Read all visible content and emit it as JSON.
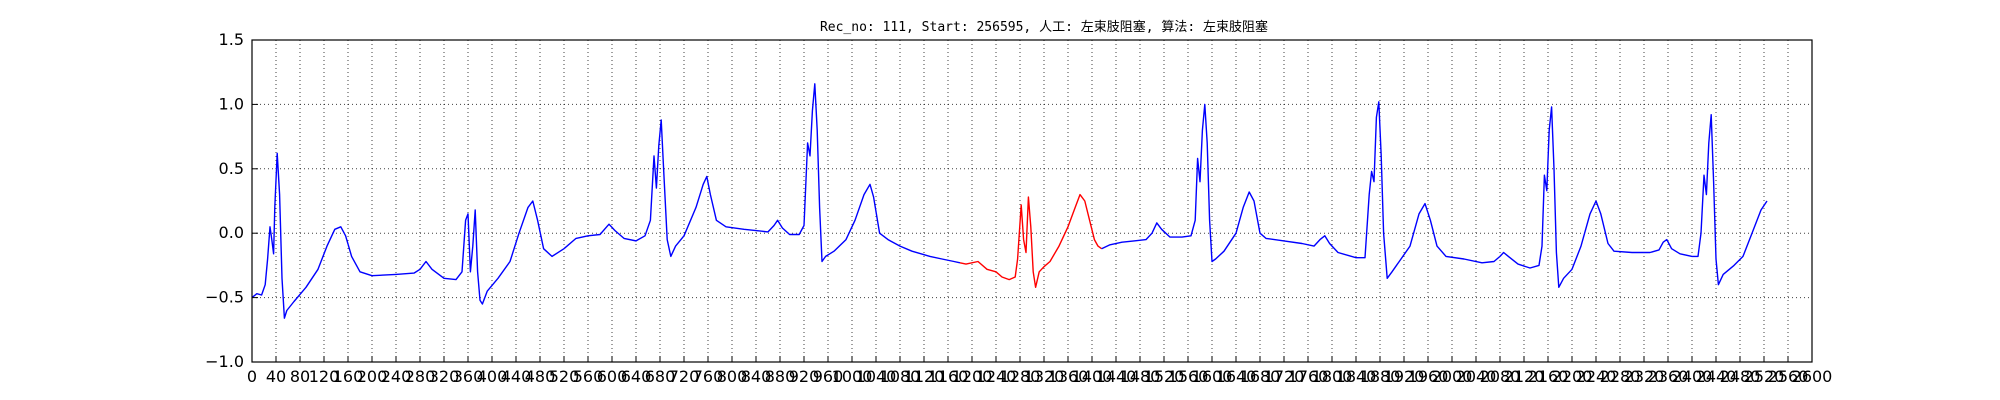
{
  "chart_data": {
    "type": "line",
    "title": "Rec_no: 111, Start: 256595, 人工: 左束肢阻塞, 算法: 左束肢阻塞",
    "xlabel": "",
    "ylabel": "",
    "xlim": [
      0,
      2600
    ],
    "ylim": [
      -1.0,
      1.5
    ],
    "grid": true,
    "x_ticks": [
      0,
      40,
      80,
      120,
      160,
      200,
      240,
      280,
      320,
      360,
      400,
      440,
      480,
      520,
      560,
      600,
      640,
      680,
      720,
      760,
      800,
      840,
      880,
      920,
      960,
      1000,
      1040,
      1080,
      1120,
      1160,
      1200,
      1240,
      1280,
      1320,
      1360,
      1400,
      1440,
      1480,
      1520,
      1560,
      1600,
      1640,
      1680,
      1720,
      1760,
      1800,
      1840,
      1880,
      1920,
      1960,
      2000,
      2040,
      2080,
      2120,
      2160,
      2200,
      2240,
      2280,
      2320,
      2360,
      2400,
      2440,
      2480,
      2520,
      2560,
      2600
    ],
    "x_tick_labels": [
      "0",
      "40",
      "80",
      "120",
      "160",
      "200",
      "240",
      "280",
      "320",
      "360",
      "400",
      "440",
      "480",
      "520",
      "560",
      "600",
      "640",
      "680",
      "720",
      "760",
      "800",
      "840",
      "880",
      "920",
      "960",
      "1000",
      "1040",
      "1080",
      "1120",
      "1160",
      "1200",
      "1240",
      "1280",
      "1320",
      "1360",
      "1400",
      "1440",
      "1480",
      "1520",
      "1560",
      "1600",
      "1640",
      "1680",
      "1720",
      "1760",
      "1800",
      "1840",
      "1880",
      "1920",
      "1960",
      "2000",
      "2040",
      "2080",
      "2120",
      "2160",
      "2200",
      "2240",
      "2280",
      "2320",
      "2360",
      "2400",
      "2440",
      "2480",
      "2520",
      "2560",
      "2600"
    ],
    "y_ticks": [
      -1.0,
      -0.5,
      0.0,
      0.5,
      1.0,
      1.5
    ],
    "y_tick_labels": [
      "−1.0",
      "−0.5",
      "0.0",
      "0.5",
      "1.0",
      "1.5"
    ],
    "series": [
      {
        "color": "#0000ff",
        "points": [
          [
            0,
            -0.5
          ],
          [
            8,
            -0.47
          ],
          [
            16,
            -0.48
          ],
          [
            22,
            -0.4
          ],
          [
            26,
            -0.2
          ],
          [
            30,
            0.05
          ],
          [
            33,
            -0.05
          ],
          [
            36,
            -0.16
          ],
          [
            38,
            0.2
          ],
          [
            42,
            0.62
          ],
          [
            46,
            0.3
          ],
          [
            50,
            -0.35
          ],
          [
            54,
            -0.66
          ],
          [
            58,
            -0.6
          ],
          [
            70,
            -0.53
          ],
          [
            90,
            -0.42
          ],
          [
            110,
            -0.28
          ],
          [
            125,
            -0.1
          ],
          [
            138,
            0.03
          ],
          [
            148,
            0.05
          ],
          [
            156,
            -0.02
          ],
          [
            166,
            -0.18
          ],
          [
            180,
            -0.3
          ],
          [
            200,
            -0.33
          ],
          [
            240,
            -0.32
          ],
          [
            270,
            -0.31
          ],
          [
            280,
            -0.28
          ],
          [
            290,
            -0.22
          ],
          [
            300,
            -0.28
          ],
          [
            320,
            -0.35
          ],
          [
            340,
            -0.36
          ],
          [
            350,
            -0.3
          ],
          [
            356,
            0.1
          ],
          [
            360,
            0.15
          ],
          [
            364,
            -0.3
          ],
          [
            368,
            -0.1
          ],
          [
            372,
            0.18
          ],
          [
            376,
            -0.3
          ],
          [
            380,
            -0.52
          ],
          [
            384,
            -0.55
          ],
          [
            392,
            -0.45
          ],
          [
            410,
            -0.35
          ],
          [
            430,
            -0.22
          ],
          [
            445,
            0.0
          ],
          [
            460,
            0.2
          ],
          [
            468,
            0.25
          ],
          [
            476,
            0.1
          ],
          [
            486,
            -0.12
          ],
          [
            500,
            -0.18
          ],
          [
            520,
            -0.12
          ],
          [
            540,
            -0.04
          ],
          [
            560,
            -0.02
          ],
          [
            580,
            -0.01
          ],
          [
            595,
            0.07
          ],
          [
            605,
            0.02
          ],
          [
            620,
            -0.04
          ],
          [
            640,
            -0.06
          ],
          [
            655,
            -0.02
          ],
          [
            664,
            0.1
          ],
          [
            670,
            0.6
          ],
          [
            674,
            0.35
          ],
          [
            678,
            0.68
          ],
          [
            682,
            0.88
          ],
          [
            686,
            0.5
          ],
          [
            692,
            -0.05
          ],
          [
            698,
            -0.18
          ],
          [
            706,
            -0.1
          ],
          [
            720,
            -0.02
          ],
          [
            740,
            0.2
          ],
          [
            752,
            0.38
          ],
          [
            758,
            0.44
          ],
          [
            764,
            0.3
          ],
          [
            774,
            0.1
          ],
          [
            790,
            0.05
          ],
          [
            820,
            0.03
          ],
          [
            840,
            0.02
          ],
          [
            860,
            0.01
          ],
          [
            870,
            0.06
          ],
          [
            876,
            0.1
          ],
          [
            884,
            0.04
          ],
          [
            896,
            -0.01
          ],
          [
            912,
            -0.01
          ],
          [
            920,
            0.06
          ],
          [
            926,
            0.7
          ],
          [
            930,
            0.6
          ],
          [
            934,
            0.95
          ],
          [
            938,
            1.16
          ],
          [
            942,
            0.8
          ],
          [
            946,
            0.2
          ],
          [
            950,
            -0.22
          ],
          [
            956,
            -0.18
          ],
          [
            970,
            -0.14
          ],
          [
            990,
            -0.05
          ],
          [
            1005,
            0.1
          ],
          [
            1020,
            0.3
          ],
          [
            1030,
            0.38
          ],
          [
            1036,
            0.28
          ],
          [
            1046,
            0.0
          ],
          [
            1060,
            -0.05
          ],
          [
            1080,
            -0.1
          ],
          [
            1100,
            -0.14
          ],
          [
            1130,
            -0.18
          ],
          [
            1150,
            -0.2
          ],
          [
            1170,
            -0.22
          ],
          [
            1180,
            -0.23
          ]
        ]
      },
      {
        "color": "#ff0000",
        "points": [
          [
            1180,
            -0.23
          ],
          [
            1190,
            -0.24
          ],
          [
            1210,
            -0.22
          ],
          [
            1225,
            -0.28
          ],
          [
            1240,
            -0.3
          ],
          [
            1250,
            -0.34
          ],
          [
            1262,
            -0.36
          ],
          [
            1272,
            -0.34
          ],
          [
            1276,
            -0.2
          ],
          [
            1282,
            0.22
          ],
          [
            1286,
            -0.05
          ],
          [
            1290,
            -0.15
          ],
          [
            1294,
            0.28
          ],
          [
            1298,
            0.05
          ],
          [
            1302,
            -0.3
          ],
          [
            1306,
            -0.42
          ],
          [
            1312,
            -0.3
          ],
          [
            1320,
            -0.26
          ],
          [
            1330,
            -0.22
          ],
          [
            1345,
            -0.1
          ],
          [
            1360,
            0.05
          ],
          [
            1372,
            0.2
          ],
          [
            1380,
            0.3
          ],
          [
            1388,
            0.25
          ],
          [
            1396,
            0.1
          ],
          [
            1404,
            -0.05
          ],
          [
            1410,
            -0.1
          ],
          [
            1416,
            -0.12
          ]
        ]
      },
      {
        "color": "#0000ff",
        "points": [
          [
            1416,
            -0.12
          ],
          [
            1430,
            -0.09
          ],
          [
            1450,
            -0.07
          ],
          [
            1470,
            -0.06
          ],
          [
            1490,
            -0.05
          ],
          [
            1500,
            0.0
          ],
          [
            1508,
            0.08
          ],
          [
            1516,
            0.03
          ],
          [
            1530,
            -0.03
          ],
          [
            1550,
            -0.03
          ],
          [
            1565,
            -0.02
          ],
          [
            1572,
            0.1
          ],
          [
            1576,
            0.58
          ],
          [
            1580,
            0.4
          ],
          [
            1584,
            0.8
          ],
          [
            1588,
            1.0
          ],
          [
            1592,
            0.7
          ],
          [
            1596,
            0.1
          ],
          [
            1600,
            -0.22
          ],
          [
            1606,
            -0.2
          ],
          [
            1620,
            -0.14
          ],
          [
            1640,
            0.0
          ],
          [
            1652,
            0.2
          ],
          [
            1662,
            0.32
          ],
          [
            1670,
            0.25
          ],
          [
            1680,
            0.0
          ],
          [
            1690,
            -0.04
          ],
          [
            1720,
            -0.06
          ],
          [
            1750,
            -0.08
          ],
          [
            1770,
            -0.1
          ],
          [
            1780,
            -0.05
          ],
          [
            1788,
            -0.02
          ],
          [
            1796,
            -0.08
          ],
          [
            1810,
            -0.15
          ],
          [
            1840,
            -0.19
          ],
          [
            1855,
            -0.19
          ],
          [
            1862,
            0.3
          ],
          [
            1866,
            0.48
          ],
          [
            1870,
            0.4
          ],
          [
            1874,
            0.9
          ],
          [
            1878,
            1.02
          ],
          [
            1882,
            0.6
          ],
          [
            1886,
            0.0
          ],
          [
            1892,
            -0.35
          ],
          [
            1900,
            -0.3
          ],
          [
            1915,
            -0.2
          ],
          [
            1930,
            -0.1
          ],
          [
            1945,
            0.15
          ],
          [
            1955,
            0.23
          ],
          [
            1964,
            0.1
          ],
          [
            1975,
            -0.1
          ],
          [
            1990,
            -0.18
          ],
          [
            2020,
            -0.2
          ],
          [
            2050,
            -0.23
          ],
          [
            2070,
            -0.22
          ],
          [
            2080,
            -0.18
          ],
          [
            2086,
            -0.15
          ],
          [
            2094,
            -0.18
          ],
          [
            2110,
            -0.24
          ],
          [
            2130,
            -0.27
          ],
          [
            2145,
            -0.25
          ],
          [
            2150,
            -0.1
          ],
          [
            2154,
            0.45
          ],
          [
            2158,
            0.33
          ],
          [
            2162,
            0.8
          ],
          [
            2166,
            0.98
          ],
          [
            2170,
            0.5
          ],
          [
            2174,
            -0.15
          ],
          [
            2178,
            -0.42
          ],
          [
            2186,
            -0.35
          ],
          [
            2200,
            -0.28
          ],
          [
            2215,
            -0.1
          ],
          [
            2230,
            0.15
          ],
          [
            2240,
            0.25
          ],
          [
            2248,
            0.15
          ],
          [
            2260,
            -0.08
          ],
          [
            2270,
            -0.14
          ],
          [
            2300,
            -0.15
          ],
          [
            2330,
            -0.15
          ],
          [
            2345,
            -0.13
          ],
          [
            2352,
            -0.07
          ],
          [
            2358,
            -0.05
          ],
          [
            2366,
            -0.12
          ],
          [
            2380,
            -0.16
          ],
          [
            2400,
            -0.18
          ],
          [
            2410,
            -0.18
          ],
          [
            2415,
            0.0
          ],
          [
            2420,
            0.45
          ],
          [
            2424,
            0.3
          ],
          [
            2428,
            0.7
          ],
          [
            2432,
            0.92
          ],
          [
            2436,
            0.4
          ],
          [
            2440,
            -0.2
          ],
          [
            2444,
            -0.4
          ],
          [
            2452,
            -0.32
          ],
          [
            2470,
            -0.25
          ],
          [
            2485,
            -0.18
          ],
          [
            2500,
            0.0
          ],
          [
            2515,
            0.18
          ],
          [
            2525,
            0.25
          ]
        ]
      }
    ]
  }
}
